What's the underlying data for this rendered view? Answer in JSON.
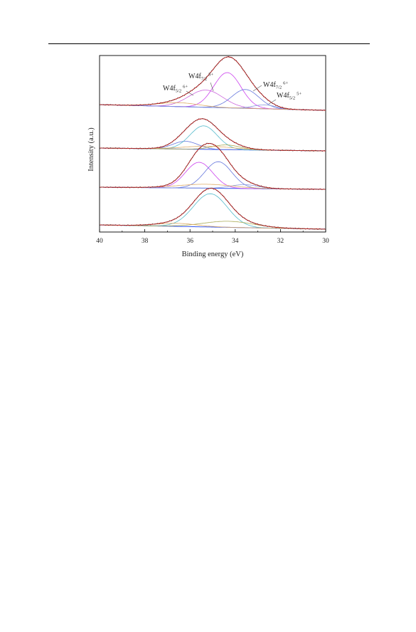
{
  "chart_data": {
    "type": "line",
    "xlabel": "Binding energy (eV)",
    "ylabel": "Intensity (a.u.)",
    "xlim": [
      40,
      30
    ],
    "x_reversed": true,
    "x_ticks": [
      "40",
      "38",
      "36",
      "34",
      "32",
      "30"
    ],
    "grid": false,
    "legend": "none",
    "annotations": [
      {
        "text": "W4f",
        "sub": "7/2",
        "sup": "5+"
      },
      {
        "text": "W4f",
        "sub": "5/2",
        "sup": "6+"
      },
      {
        "text": "W4f",
        "sub": "7/2",
        "sup": "6+"
      },
      {
        "text": "W4f",
        "sub": "5/2",
        "sup": "5+"
      }
    ],
    "spectra": [
      {
        "components": [
          {
            "center": 35.3,
            "width": 0.75,
            "height": 0.22,
            "color": "#cc66dd"
          },
          {
            "center": 34.35,
            "width": 0.6,
            "height": 0.45,
            "color": "#cc44ee"
          },
          {
            "center": 33.55,
            "width": 0.6,
            "height": 0.24,
            "color": "#6677dd"
          },
          {
            "center": 32.7,
            "width": 0.5,
            "height": 0.05,
            "color": "#8899dd"
          },
          {
            "center": 36.5,
            "width": 0.9,
            "height": 0.05,
            "color": "#ddaa66"
          }
        ]
      },
      {
        "components": [
          {
            "center": 36.2,
            "width": 0.55,
            "height": 0.1,
            "color": "#6677dd"
          },
          {
            "center": 35.4,
            "width": 0.6,
            "height": 0.3,
            "color": "#55bbcc"
          },
          {
            "center": 34.4,
            "width": 0.6,
            "height": 0.06,
            "color": "#aaaa55"
          },
          {
            "center": 35.2,
            "width": 1.1,
            "height": 0.04,
            "color": "#ddaa66"
          }
        ]
      },
      {
        "components": [
          {
            "center": 35.6,
            "width": 0.6,
            "height": 0.33,
            "color": "#cc44ee"
          },
          {
            "center": 34.75,
            "width": 0.6,
            "height": 0.34,
            "color": "#6677dd"
          },
          {
            "center": 33.6,
            "width": 0.6,
            "height": 0.05,
            "color": "#8899dd"
          },
          {
            "center": 35.3,
            "width": 1.2,
            "height": 0.05,
            "color": "#ddaa66"
          }
        ]
      },
      {
        "components": [
          {
            "center": 35.1,
            "width": 0.75,
            "height": 0.55,
            "color": "#55bbcc"
          },
          {
            "center": 34.3,
            "width": 1.1,
            "height": 0.1,
            "color": "#aaaa55"
          },
          {
            "center": 36.6,
            "width": 0.9,
            "height": 0.05,
            "color": "#ddaa66"
          }
        ]
      }
    ],
    "colors": {
      "raw": "#333333",
      "envelope": "#ee2222",
      "baseline": "#3355ee"
    }
  }
}
